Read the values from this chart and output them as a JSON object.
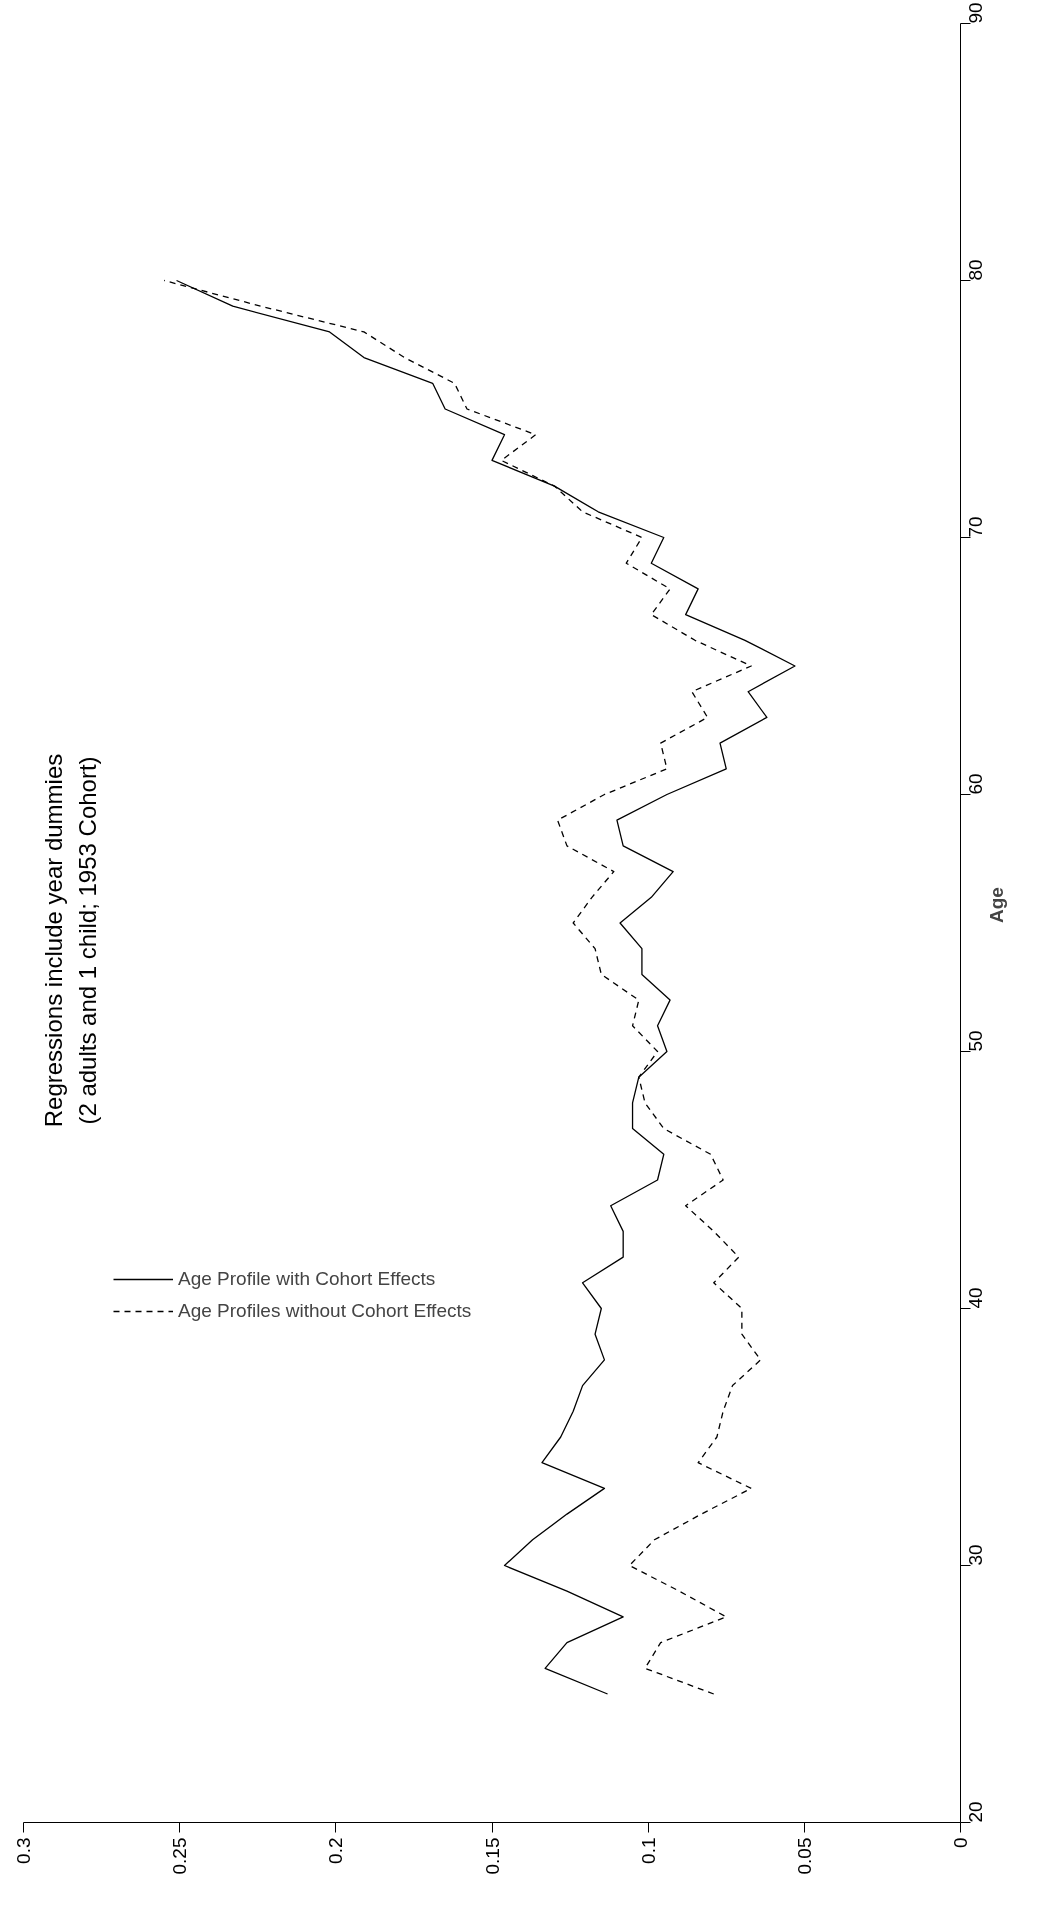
{
  "chart_data": {
    "type": "line",
    "title": "Regressions include year dummies",
    "subtitle": "(2 adults and 1 child; 1953 Cohort)",
    "ylabel": "Age",
    "series": [
      {
        "name": "Age Profile with Cohort Effects",
        "color": "#000000",
        "line_style": "solid",
        "x": [
          0.113,
          0.133,
          0.126,
          0.108,
          0.126,
          0.146,
          0.137,
          0.126,
          0.114,
          0.134,
          0.128,
          0.124,
          0.121,
          0.114,
          0.117,
          0.115,
          0.121,
          0.108,
          0.108,
          0.112,
          0.097,
          0.095,
          0.105,
          0.105,
          0.103,
          0.094,
          0.097,
          0.093,
          0.102,
          0.102,
          0.109,
          0.099,
          0.092,
          0.108,
          0.11,
          0.094,
          0.075,
          0.077,
          0.062,
          0.068,
          0.053,
          0.069,
          0.088,
          0.084,
          0.099,
          0.095,
          0.116,
          0.13,
          0.15,
          0.146,
          0.165,
          0.169,
          0.191,
          0.202,
          0.233,
          0.251
        ],
        "values": [
          25,
          26,
          27,
          28,
          29,
          30,
          31,
          32,
          33,
          34,
          35,
          36,
          37,
          38,
          39,
          40,
          41,
          42,
          43,
          44,
          45,
          46,
          47,
          48,
          49,
          50,
          51,
          52,
          53,
          54,
          55,
          56,
          57,
          58,
          59,
          60,
          61,
          62,
          63,
          64,
          65,
          66,
          67,
          68,
          69,
          70,
          71,
          72,
          73,
          74,
          75,
          76,
          77,
          78,
          79,
          80
        ]
      },
      {
        "name": "Age Profiles without Cohort Effects",
        "color": "#000000",
        "line_style": "dashed",
        "x": [
          0.079,
          0.101,
          0.096,
          0.075,
          0.09,
          0.106,
          0.098,
          0.083,
          0.067,
          0.084,
          0.078,
          0.076,
          0.073,
          0.064,
          0.07,
          0.07,
          0.079,
          0.071,
          0.079,
          0.088,
          0.076,
          0.08,
          0.095,
          0.101,
          0.103,
          0.097,
          0.105,
          0.103,
          0.115,
          0.117,
          0.124,
          0.118,
          0.111,
          0.126,
          0.129,
          0.114,
          0.094,
          0.096,
          0.081,
          0.086,
          0.067,
          0.085,
          0.099,
          0.093,
          0.107,
          0.102,
          0.121,
          0.13,
          0.147,
          0.136,
          0.158,
          0.162,
          0.178,
          0.191,
          0.224,
          0.255
        ],
        "values": [
          25,
          26,
          27,
          28,
          29,
          30,
          31,
          32,
          33,
          34,
          35,
          36,
          37,
          38,
          39,
          40,
          41,
          42,
          43,
          44,
          45,
          46,
          47,
          48,
          49,
          50,
          51,
          52,
          53,
          54,
          55,
          56,
          57,
          58,
          59,
          60,
          61,
          62,
          63,
          64,
          65,
          66,
          67,
          68,
          69,
          70,
          71,
          72,
          73,
          74,
          75,
          76,
          77,
          78,
          79,
          80
        ]
      }
    ],
    "xlim": [
      0.3,
      0
    ],
    "xticks": [
      0.3,
      0.25,
      0.2,
      0.15,
      0.1,
      0.05,
      0
    ],
    "ylim": [
      20,
      90
    ],
    "yticks": [
      20,
      30,
      40,
      50,
      60,
      70,
      80,
      90
    ],
    "grid": false,
    "legend": "bottom left"
  }
}
